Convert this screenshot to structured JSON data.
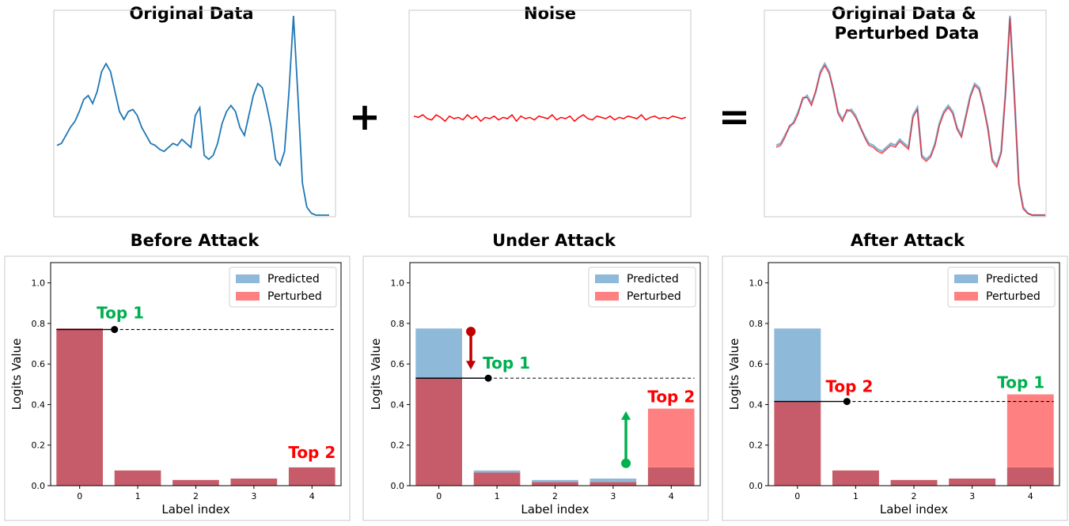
{
  "colors": {
    "original": "#1f77b4",
    "noise": "#ff0000",
    "predicted": "#8fb9d9",
    "perturbed": "#ff8080",
    "overlap": "#c65c6a",
    "top1": "#00b050",
    "top2": "#ff0000",
    "arrow_down": "#c00000",
    "arrow_up": "#00b050"
  },
  "operators": {
    "plus": "+",
    "equals": "="
  },
  "chart_data": [
    {
      "id": "original",
      "type": "line",
      "title": "Original Data",
      "series": [
        {
          "values": [
            0.35,
            0.36,
            0.4,
            0.44,
            0.47,
            0.52,
            0.58,
            0.6,
            0.56,
            0.62,
            0.72,
            0.76,
            0.72,
            0.62,
            0.52,
            0.48,
            0.52,
            0.53,
            0.5,
            0.44,
            0.4,
            0.36,
            0.35,
            0.33,
            0.32,
            0.34,
            0.36,
            0.35,
            0.38,
            0.36,
            0.34,
            0.5,
            0.54,
            0.3,
            0.28,
            0.3,
            0.36,
            0.46,
            0.52,
            0.55,
            0.52,
            0.44,
            0.4,
            0.5,
            0.6,
            0.66,
            0.64,
            0.55,
            0.44,
            0.28,
            0.25,
            0.32,
            0.62,
            1.0,
            0.6,
            0.16,
            0.04,
            0.01,
            0.0,
            0.0,
            0.0,
            0.0
          ]
        }
      ]
    },
    {
      "id": "noise",
      "type": "line",
      "title": "Noise",
      "series": [
        {
          "values": [
            0.52,
            0.51,
            0.53,
            0.5,
            0.49,
            0.53,
            0.51,
            0.48,
            0.52,
            0.5,
            0.51,
            0.49,
            0.53,
            0.5,
            0.52,
            0.48,
            0.51,
            0.5,
            0.52,
            0.49,
            0.51,
            0.5,
            0.53,
            0.48,
            0.52,
            0.5,
            0.51,
            0.49,
            0.52,
            0.51,
            0.5,
            0.53,
            0.49,
            0.51,
            0.5,
            0.52,
            0.48,
            0.51,
            0.53,
            0.5,
            0.49,
            0.52,
            0.51,
            0.5,
            0.52,
            0.49,
            0.51,
            0.5,
            0.52,
            0.51,
            0.5,
            0.53,
            0.49,
            0.51,
            0.52,
            0.5,
            0.51,
            0.5,
            0.52,
            0.51,
            0.5,
            0.51
          ]
        }
      ]
    },
    {
      "id": "combined",
      "type": "line",
      "title": "Original Data &\nPerturbed Data",
      "series": [
        {
          "values": [
            0.35,
            0.36,
            0.4,
            0.44,
            0.47,
            0.52,
            0.58,
            0.6,
            0.56,
            0.62,
            0.72,
            0.76,
            0.72,
            0.62,
            0.52,
            0.48,
            0.52,
            0.53,
            0.5,
            0.44,
            0.4,
            0.36,
            0.35,
            0.33,
            0.32,
            0.34,
            0.36,
            0.35,
            0.38,
            0.36,
            0.34,
            0.5,
            0.54,
            0.3,
            0.28,
            0.3,
            0.36,
            0.46,
            0.52,
            0.55,
            0.52,
            0.44,
            0.4,
            0.5,
            0.6,
            0.66,
            0.64,
            0.55,
            0.44,
            0.28,
            0.25,
            0.32,
            0.62,
            1.0,
            0.6,
            0.16,
            0.04,
            0.01,
            0.0,
            0.0,
            0.0,
            0.0
          ]
        },
        {
          "values": [
            0.34,
            0.35,
            0.39,
            0.45,
            0.46,
            0.51,
            0.59,
            0.59,
            0.55,
            0.63,
            0.71,
            0.75,
            0.71,
            0.63,
            0.51,
            0.47,
            0.53,
            0.52,
            0.49,
            0.45,
            0.39,
            0.35,
            0.34,
            0.32,
            0.31,
            0.33,
            0.35,
            0.34,
            0.37,
            0.35,
            0.33,
            0.49,
            0.53,
            0.29,
            0.27,
            0.29,
            0.35,
            0.45,
            0.51,
            0.54,
            0.51,
            0.43,
            0.39,
            0.49,
            0.59,
            0.65,
            0.63,
            0.54,
            0.43,
            0.27,
            0.24,
            0.31,
            0.61,
            0.99,
            0.59,
            0.15,
            0.03,
            0.01,
            0.0,
            0.0,
            0.0,
            0.0
          ]
        }
      ]
    },
    {
      "id": "before",
      "type": "bar",
      "title": "Before Attack",
      "xlabel": "Label index",
      "ylabel": "Logits Value",
      "categories": [
        "0",
        "1",
        "2",
        "3",
        "4"
      ],
      "yticks": [
        "0.0",
        "0.2",
        "0.4",
        "0.6",
        "0.8",
        "1.0"
      ],
      "ylim": [
        0,
        1.1
      ],
      "legend": [
        "Predicted",
        "Perturbed"
      ],
      "legend_position": "top-right",
      "series": [
        {
          "name": "Predicted",
          "values": [
            0.775,
            0.075,
            0.028,
            0.035,
            0.09
          ]
        },
        {
          "name": "Perturbed",
          "values": [
            0.775,
            0.075,
            0.028,
            0.035,
            0.09
          ]
        }
      ],
      "threshold": 0.77,
      "marker_x": 0.6,
      "annotations": {
        "top1": {
          "text": "Top 1",
          "bar": 0
        },
        "top2": {
          "text": "Top 2",
          "bar": 4
        }
      }
    },
    {
      "id": "under",
      "type": "bar",
      "title": "Under Attack",
      "xlabel": "Label index",
      "ylabel": "Logits Value",
      "categories": [
        "0",
        "1",
        "2",
        "3",
        "4"
      ],
      "yticks": [
        "0.0",
        "0.2",
        "0.4",
        "0.6",
        "0.8",
        "1.0"
      ],
      "ylim": [
        0,
        1.1
      ],
      "legend": [
        "Predicted",
        "Perturbed"
      ],
      "legend_position": "top-right",
      "series": [
        {
          "name": "Predicted",
          "values": [
            0.775,
            0.075,
            0.028,
            0.035,
            0.09
          ]
        },
        {
          "name": "Perturbed",
          "values": [
            0.53,
            0.065,
            0.018,
            0.018,
            0.38
          ]
        }
      ],
      "threshold": 0.53,
      "marker_x": 0.85,
      "annotations": {
        "top1": {
          "text": "Top 1",
          "bar": 0
        },
        "top2": {
          "text": "Top 2",
          "bar": 4
        }
      }
    },
    {
      "id": "after",
      "type": "bar",
      "title": "After Attack",
      "xlabel": "Label index",
      "ylabel": "Logits Value",
      "categories": [
        "0",
        "1",
        "2",
        "3",
        "4"
      ],
      "yticks": [
        "0.0",
        "0.2",
        "0.4",
        "0.6",
        "0.8",
        "1.0"
      ],
      "ylim": [
        0,
        1.1
      ],
      "legend": [
        "Predicted",
        "Perturbed"
      ],
      "legend_position": "top-right",
      "series": [
        {
          "name": "Predicted",
          "values": [
            0.775,
            0.075,
            0.028,
            0.035,
            0.09
          ]
        },
        {
          "name": "Perturbed",
          "values": [
            0.415,
            0.075,
            0.028,
            0.035,
            0.45
          ]
        }
      ],
      "threshold": 0.415,
      "marker_x": 0.85,
      "annotations": {
        "top1": {
          "text": "Top 1",
          "bar": 4
        },
        "top2": {
          "text": "Top 2",
          "bar": 0
        }
      }
    }
  ]
}
